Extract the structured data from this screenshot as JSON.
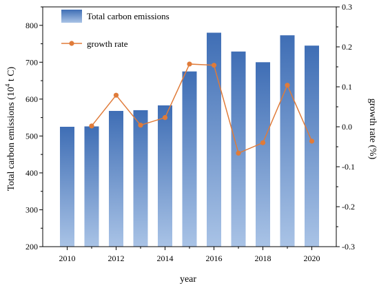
{
  "chart_data": {
    "type": "bar",
    "categories": [
      2010,
      2011,
      2012,
      2013,
      2014,
      2015,
      2016,
      2017,
      2018,
      2019,
      2020
    ],
    "series": [
      {
        "name": "Total carbon emissions",
        "type": "bar",
        "axis": "left",
        "values": [
          525,
          526,
          568,
          570,
          583,
          675,
          780,
          729,
          700,
          773,
          745
        ]
      },
      {
        "name": "growth rate",
        "type": "line",
        "axis": "right",
        "marker": "circle",
        "values": [
          null,
          0.002,
          0.079,
          0.004,
          0.023,
          0.157,
          0.154,
          -0.066,
          -0.04,
          0.104,
          -0.036
        ]
      }
    ],
    "xlabel": "year",
    "ylabel_left_main": "Total carbon emissions (10",
    "ylabel_left_sup": "4",
    "ylabel_left_tail": " t C)",
    "ylabel_right": "growth rate (%)",
    "xlim": [
      2009,
      2021
    ],
    "ylim_left": [
      200,
      850
    ],
    "ylim_right": [
      -0.3,
      0.3
    ],
    "x_ticks": [
      2010,
      2012,
      2014,
      2016,
      2018,
      2020
    ],
    "y_left_ticks": [
      200,
      300,
      400,
      500,
      600,
      700,
      800
    ],
    "y_right_ticks": [
      -0.3,
      -0.2,
      -0.1,
      0.0,
      0.1,
      0.2,
      0.3
    ],
    "y_right_tick_labels": [
      "-0.3",
      "-0.2",
      "-0.1",
      "0.0",
      "0.1",
      "0.2",
      "0.3"
    ],
    "legend_position": "top-left",
    "grid": false,
    "colors": {
      "bar_top": "#3f6eb5",
      "bar_bottom": "#a9c3e6",
      "line": "#e07b39"
    }
  }
}
